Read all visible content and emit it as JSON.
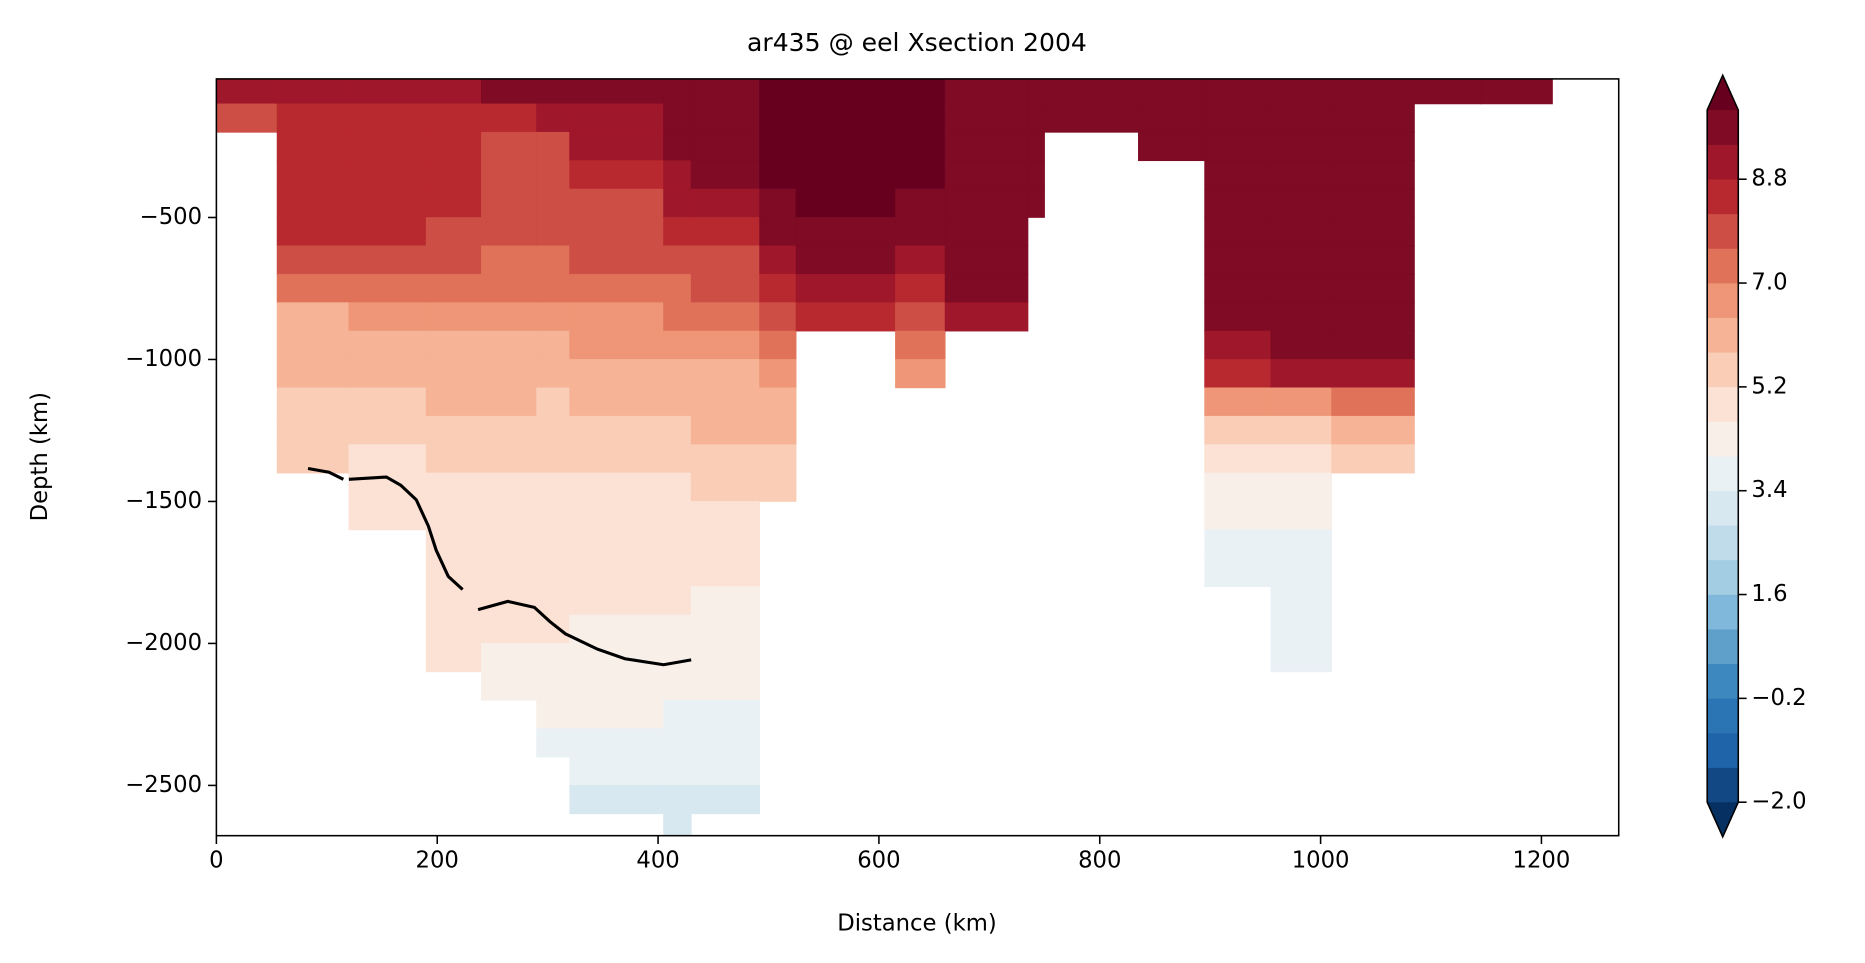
{
  "chart_data": {
    "type": "contourf",
    "title": "ar435 @ eel Xsection 2004",
    "xlabel": "Distance (km)",
    "ylabel": "Depth (km)",
    "xlim": [
      0,
      1270
    ],
    "ylim": [
      -2677,
      -12
    ],
    "xticks": [
      0,
      200,
      400,
      600,
      800,
      1000,
      1200
    ],
    "yticks": [
      {
        "value": -500,
        "label": "−500"
      },
      {
        "value": -1000,
        "label": "−1000"
      },
      {
        "value": -1500,
        "label": "−1500"
      },
      {
        "value": -2000,
        "label": "−2000"
      },
      {
        "value": -2500,
        "label": "−2500"
      }
    ],
    "x_edges": [
      0,
      55,
      120,
      190,
      240,
      290,
      320,
      405,
      430,
      492,
      525,
      615,
      660,
      735,
      750,
      835,
      895,
      955,
      1010,
      1085,
      1145,
      1210
    ],
    "depth_edges": [
      0,
      -100,
      -200,
      -300,
      -400,
      -500,
      -600,
      -700,
      -800,
      -900,
      -1000,
      -1100,
      -1200,
      -1300,
      -1400,
      -1500,
      -1600,
      -1700,
      -1800,
      -1900,
      -2000,
      -2100,
      -2200,
      -2300,
      -2400,
      -2500,
      -2600,
      -2700
    ],
    "values": [
      [
        8.8,
        8.0,
        null,
        null,
        null,
        null,
        null,
        null,
        null,
        null,
        null,
        null,
        null,
        null,
        null,
        null,
        null,
        null,
        null,
        null,
        null,
        null,
        null,
        null,
        null,
        null,
        null
      ],
      [
        9.2,
        8.5,
        8.5,
        8.5,
        8.5,
        8.5,
        8.0,
        7.3,
        6.2,
        6.0,
        5.9,
        5.5,
        5.4,
        5.3,
        null,
        null,
        null,
        null,
        null,
        null,
        null,
        null,
        null,
        null,
        null,
        null,
        null
      ],
      [
        9.3,
        8.6,
        8.5,
        8.5,
        8.5,
        8.3,
        7.9,
        7.3,
        6.5,
        6.1,
        6.0,
        5.5,
        5.4,
        4.9,
        4.9,
        4.9,
        null,
        null,
        null,
        null,
        null,
        null,
        null,
        null,
        null,
        null,
        null
      ],
      [
        9.0,
        8.5,
        8.5,
        8.5,
        8.5,
        8.0,
        7.9,
        7.3,
        6.7,
        6.1,
        6.0,
        5.8,
        5.5,
        5.3,
        4.9,
        4.9,
        4.9,
        4.9,
        4.9,
        4.9,
        4.9,
        null,
        null,
        null,
        null,
        null,
        null
      ],
      [
        9.4,
        8.7,
        8.0,
        7.9,
        7.9,
        7.7,
        7.3,
        7.1,
        6.6,
        6.1,
        6.1,
        5.8,
        5.5,
        5.3,
        4.9,
        4.9,
        4.9,
        4.9,
        4.9,
        4.9,
        4.4,
        4.3,
        null,
        null,
        null,
        null,
        null
      ],
      [
        9.5,
        8.9,
        8.0,
        7.9,
        7.9,
        7.8,
        7.5,
        7.2,
        6.6,
        6.1,
        6.1,
        5.7,
        5.5,
        5.3,
        4.9,
        4.9,
        4.9,
        4.9,
        4.9,
        4.9,
        4.4,
        4.3,
        4.3,
        3.8,
        null,
        null,
        null
      ],
      [
        9.6,
        9.3,
        9.0,
        8.4,
        7.9,
        7.9,
        7.8,
        7.3,
        6.8,
        6.4,
        6.1,
        6.0,
        5.5,
        5.4,
        5.1,
        4.9,
        4.9,
        4.9,
        4.8,
        4.5,
        4.4,
        4.3,
        4.2,
        3.8,
        3.7,
        3.1,
        null
      ],
      [
        9.7,
        9.7,
        9.6,
        9.2,
        8.8,
        8.3,
        7.8,
        7.4,
        7.0,
        6.4,
        6.1,
        6.0,
        5.7,
        5.4,
        5.0,
        4.9,
        4.9,
        4.8,
        4.6,
        4.4,
        4.3,
        4.2,
        3.9,
        3.7,
        3.6,
        3.1,
        3.0
      ],
      [
        9.8,
        9.8,
        9.7,
        9.6,
        9.2,
        8.6,
        8.1,
        7.6,
        7.3,
        6.8,
        6.3,
        6.1,
        5.8,
        5.5,
        5.3,
        4.9,
        4.9,
        4.8,
        4.5,
        4.4,
        4.3,
        4.1,
        3.8,
        3.7,
        3.5,
        3.1,
        null
      ],
      [
        10.2,
        10.2,
        10.1,
        10.1,
        9.9,
        9.6,
        9.2,
        8.6,
        8.0,
        7.4,
        6.9,
        6.3,
        6.0,
        5.7,
        5.5,
        null,
        null,
        null,
        null,
        null,
        null,
        null,
        null,
        null,
        null,
        null,
        null
      ],
      [
        10.3,
        10.3,
        10.3,
        10.2,
        10.1,
        9.8,
        9.6,
        9.0,
        8.6,
        null,
        null,
        null,
        null,
        null,
        null,
        null,
        null,
        null,
        null,
        null,
        null,
        null,
        null,
        null,
        null,
        null,
        null
      ],
      [
        10.3,
        10.3,
        10.3,
        10.2,
        9.8,
        9.7,
        9.3,
        8.7,
        8.0,
        7.4,
        6.6,
        null,
        null,
        null,
        null,
        null,
        null,
        null,
        null,
        null,
        null,
        null,
        null,
        null,
        null,
        null,
        null
      ],
      [
        9.8,
        9.8,
        9.8,
        9.8,
        9.8,
        9.8,
        9.8,
        9.6,
        9.1,
        null,
        null,
        null,
        null,
        null,
        null,
        null,
        null,
        null,
        null,
        null,
        null,
        null,
        null,
        null,
        null,
        null,
        null
      ],
      [
        9.8,
        9.8,
        9.8,
        9.8,
        9.8,
        null,
        null,
        null,
        null,
        null,
        null,
        null,
        null,
        null,
        null,
        null,
        null,
        null,
        null,
        null,
        null,
        null,
        null,
        null,
        null,
        null,
        null
      ],
      [
        9.8,
        9.8,
        null,
        null,
        null,
        null,
        null,
        null,
        null,
        null,
        null,
        null,
        null,
        null,
        null,
        null,
        null,
        null,
        null,
        null,
        null,
        null,
        null,
        null,
        null,
        null,
        null
      ],
      [
        9.8,
        9.8,
        9.8,
        null,
        null,
        null,
        null,
        null,
        null,
        null,
        null,
        null,
        null,
        null,
        null,
        null,
        null,
        null,
        null,
        null,
        null,
        null,
        null,
        null,
        null,
        null,
        null
      ],
      [
        9.8,
        9.8,
        9.8,
        9.8,
        9.8,
        9.8,
        9.8,
        9.8,
        9.8,
        9.1,
        8.4,
        6.5,
        5.3,
        4.9,
        4.3,
        4.2,
        3.8,
        3.7,
        null,
        null,
        null,
        null,
        null,
        null,
        null,
        null,
        null
      ],
      [
        9.8,
        9.8,
        9.8,
        9.8,
        9.8,
        9.8,
        9.8,
        9.8,
        9.8,
        9.8,
        8.8,
        6.5,
        5.3,
        4.9,
        4.3,
        4.2,
        3.7,
        3.7,
        3.7,
        3.7,
        3.7,
        null,
        null,
        null,
        null,
        null,
        null
      ],
      [
        9.8,
        9.8,
        9.8,
        9.8,
        9.8,
        9.8,
        9.8,
        9.8,
        9.8,
        9.8,
        9.3,
        7.0,
        5.8,
        5.5,
        null,
        null,
        null,
        null,
        null,
        null,
        null,
        null,
        null,
        null,
        null,
        null,
        null
      ],
      [
        9.8,
        null,
        null,
        null,
        null,
        null,
        null,
        null,
        null,
        null,
        null,
        null,
        null,
        null,
        null,
        null,
        null,
        null,
        null,
        null,
        null,
        null,
        null,
        null,
        null,
        null,
        null
      ],
      [
        9.8,
        null,
        null,
        null,
        null,
        null,
        null,
        null,
        null,
        null,
        null,
        null,
        null,
        null,
        null,
        null,
        null,
        null,
        null,
        null,
        null,
        null,
        null,
        null,
        null,
        null,
        null
      ]
    ],
    "line": {
      "color": "#000000",
      "x": [
        83,
        102,
        115,
        null,
        120,
        154,
        167,
        181,
        192,
        199,
        210,
        223,
        null,
        237,
        264,
        288,
        302,
        316,
        345,
        370,
        405,
        430
      ],
      "y": [
        -1384,
        -1397,
        -1422,
        null,
        -1422,
        -1414,
        -1443,
        -1494,
        -1587,
        -1671,
        -1764,
        -1810,
        null,
        -1881,
        -1852,
        -1873,
        -1923,
        -1966,
        -2020,
        -2054,
        -2075,
        -2058
      ]
    },
    "colorbar": {
      "extend": "both",
      "levels": [
        -2,
        -1.4,
        -0.8,
        -0.2,
        0.4,
        1,
        1.6,
        2.2,
        2.8,
        3.4,
        4,
        4.6,
        5.2,
        5.8,
        6.4,
        7,
        7.6,
        8.2,
        8.8,
        9.4,
        10
      ],
      "colors": [
        "#124984",
        "#1f63a8",
        "#2c75b4",
        "#3d88bf",
        "#5fa0ca",
        "#7fb8da",
        "#a2cde3",
        "#c0dceb",
        "#d7e8f1",
        "#eaf1f5",
        "#f8efe9",
        "#fbe2d5",
        "#f9cdb6",
        "#f6b396",
        "#ee9677",
        "#df7259",
        "#cc4e45",
        "#b8292f",
        "#9f172a",
        "#7f0b25"
      ],
      "under_color": "#053061",
      "over_color": "#67001f",
      "ticks": [
        {
          "value": -2,
          "label": "−2.0"
        },
        {
          "value": -0.2,
          "label": "−0.2"
        },
        {
          "value": 1.6,
          "label": "1.6"
        },
        {
          "value": 3.4,
          "label": "3.4"
        },
        {
          "value": 5.2,
          "label": "5.2"
        },
        {
          "value": 7,
          "label": "7.0"
        },
        {
          "value": 8.8,
          "label": "8.8"
        }
      ]
    }
  }
}
